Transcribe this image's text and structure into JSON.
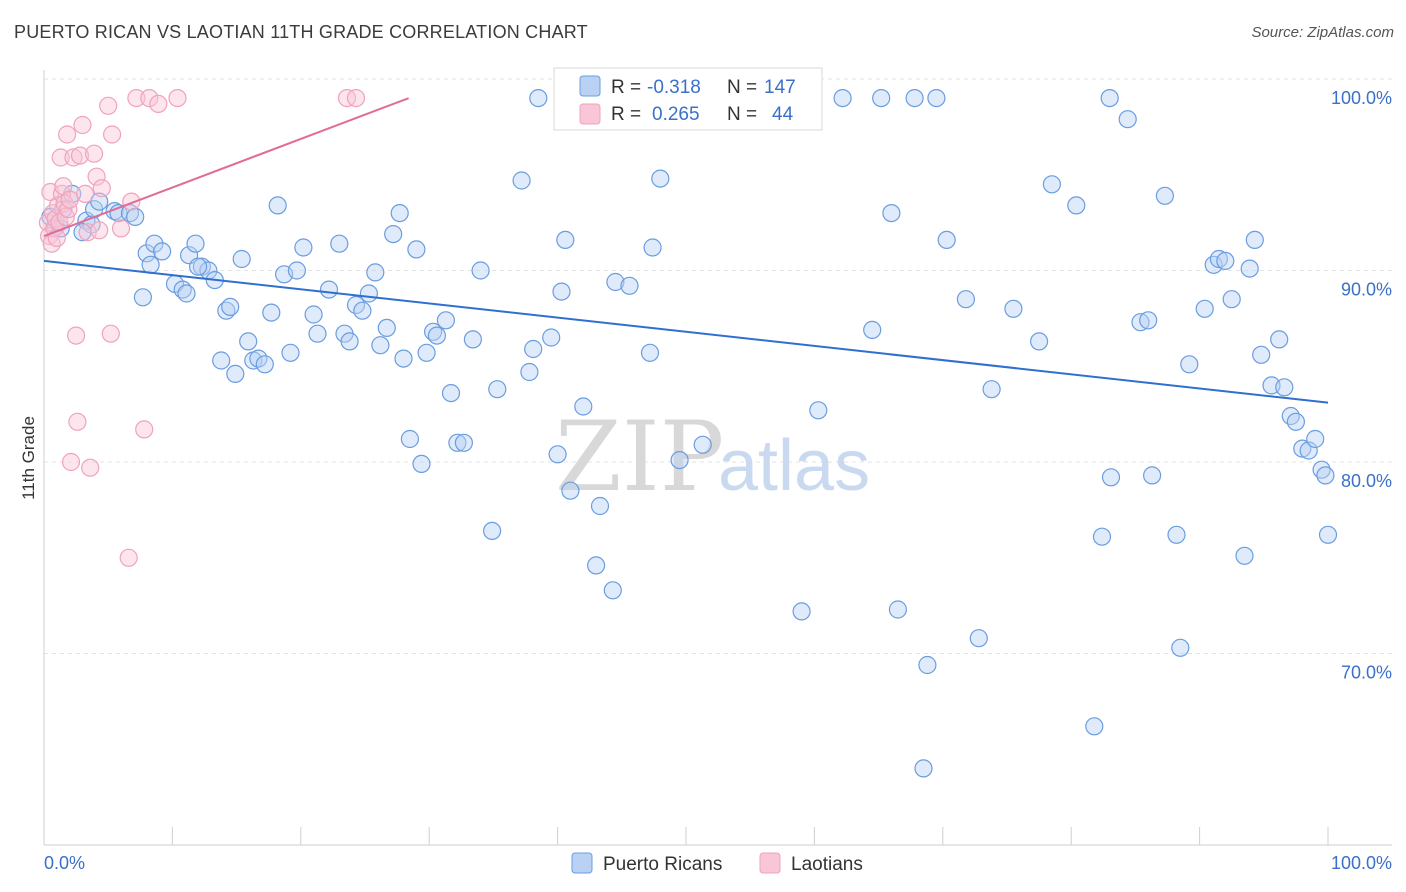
{
  "title": "PUERTO RICAN VS LAOTIAN 11TH GRADE CORRELATION CHART",
  "source": "Source: ZipAtlas.com",
  "watermark": {
    "zip": "ZIP",
    "atlas": "atlas"
  },
  "legend_box": {
    "rows": [
      {
        "r_label": "R =",
        "r_value": "-0.318",
        "n_label": "N =",
        "n_value": "147"
      },
      {
        "r_label": "R =",
        "r_value": "0.265",
        "n_label": "N =",
        "n_value": "44"
      }
    ]
  },
  "chart_data": {
    "type": "scatter",
    "title": "PUERTO RICAN VS LAOTIAN 11TH GRADE CORRELATION CHART",
    "xlabel": "",
    "ylabel": "11th Grade",
    "xlim": [
      0,
      100
    ],
    "ylim": [
      60,
      100
    ],
    "x_tick_labels": [
      "0.0%",
      "100.0%"
    ],
    "y_ticks": [
      {
        "value": 99.0,
        "label": "100.0%"
      },
      {
        "value": 89.0,
        "label": "90.0%"
      },
      {
        "value": 79.0,
        "label": "80.0%"
      },
      {
        "value": 69.0,
        "label": "70.0%"
      }
    ],
    "colors": {
      "puerto_ricans": "#6a9de0",
      "laotians": "#f0a3bc",
      "pr_line": "#2f6fd0",
      "la_line": "#e06c98",
      "axis_text": "#3a70c9"
    },
    "series": [
      {
        "name": "Puerto Ricans",
        "r": -0.318,
        "n": 147,
        "trend": {
          "x0": 0,
          "y0": 90.5,
          "x1": 100,
          "y1": 83.1
        },
        "points": [
          [
            0.5,
            92.8
          ],
          [
            0.9,
            92.3
          ],
          [
            1.3,
            92.2
          ],
          [
            1.5,
            93.2
          ],
          [
            2.2,
            94
          ],
          [
            3.3,
            92.6
          ],
          [
            3.7,
            92.4
          ],
          [
            3.9,
            93.2
          ],
          [
            4.3,
            93.6
          ],
          [
            5.5,
            93.1
          ],
          [
            5.8,
            93
          ],
          [
            6.7,
            93
          ],
          [
            7.1,
            92.8
          ],
          [
            7.7,
            88.6
          ],
          [
            8.0,
            90.9
          ],
          [
            8.3,
            90.3
          ],
          [
            8.6,
            91.4
          ],
          [
            9.2,
            91.0
          ],
          [
            10.2,
            89.3
          ],
          [
            10.8,
            89.0
          ],
          [
            11.1,
            88.8
          ],
          [
            11.3,
            90.8
          ],
          [
            11.8,
            91.4
          ],
          [
            12.3,
            90.2
          ],
          [
            12.8,
            90.0
          ],
          [
            13.3,
            89.5
          ],
          [
            13.8,
            85.3
          ],
          [
            14.2,
            87.9
          ],
          [
            14.5,
            88.1
          ],
          [
            14.9,
            84.6
          ],
          [
            15.4,
            90.6
          ],
          [
            15.9,
            86.3
          ],
          [
            16.3,
            85.3
          ],
          [
            16.7,
            85.4
          ],
          [
            17.2,
            85.1
          ],
          [
            17.7,
            87.8
          ],
          [
            18.2,
            93.4
          ],
          [
            18.7,
            89.8
          ],
          [
            19.2,
            85.7
          ],
          [
            19.7,
            90.0
          ],
          [
            20.2,
            91.2
          ],
          [
            21.0,
            87.7
          ],
          [
            21.3,
            86.7
          ],
          [
            22.2,
            89.0
          ],
          [
            23.0,
            91.4
          ],
          [
            23.4,
            86.7
          ],
          [
            23.8,
            86.3
          ],
          [
            24.3,
            88.2
          ],
          [
            24.8,
            87.9
          ],
          [
            25.3,
            88.8
          ],
          [
            25.8,
            89.9
          ],
          [
            26.2,
            86.1
          ],
          [
            26.7,
            87.0
          ],
          [
            27.2,
            91.9
          ],
          [
            27.7,
            93.0
          ],
          [
            28.0,
            85.4
          ],
          [
            28.5,
            81.2
          ],
          [
            29.0,
            91.1
          ],
          [
            29.4,
            79.9
          ],
          [
            29.8,
            85.7
          ],
          [
            30.3,
            86.8
          ],
          [
            30.6,
            86.6
          ],
          [
            31.3,
            87.4
          ],
          [
            31.7,
            83.6
          ],
          [
            32.2,
            81.0
          ],
          [
            32.7,
            81.0
          ],
          [
            33.4,
            86.4
          ],
          [
            34.0,
            90.0
          ],
          [
            34.9,
            76.4
          ],
          [
            35.3,
            83.8
          ],
          [
            37.2,
            94.7
          ],
          [
            37.8,
            84.7
          ],
          [
            38.1,
            85.9
          ],
          [
            39.5,
            86.5
          ],
          [
            40.0,
            80.4
          ],
          [
            40.3,
            88.9
          ],
          [
            40.6,
            91.6
          ],
          [
            41.0,
            78.5
          ],
          [
            42.0,
            82.9
          ],
          [
            43.0,
            74.6
          ],
          [
            43.3,
            77.7
          ],
          [
            44.3,
            73.3
          ],
          [
            44.5,
            89.4
          ],
          [
            45.6,
            89.2
          ],
          [
            47.2,
            85.7
          ],
          [
            47.4,
            91.2
          ],
          [
            48.0,
            94.8
          ],
          [
            49.5,
            80.1
          ],
          [
            51.3,
            80.9
          ],
          [
            55.0,
            99.0
          ],
          [
            57.0,
            99.0
          ],
          [
            59.0,
            72.2
          ],
          [
            60.3,
            82.7
          ],
          [
            62.2,
            99.0
          ],
          [
            64.5,
            86.9
          ],
          [
            65.2,
            99.0
          ],
          [
            66.5,
            72.3
          ],
          [
            67.8,
            99.0
          ],
          [
            68.5,
            64.0
          ],
          [
            68.8,
            69.4
          ],
          [
            69.5,
            99.0
          ],
          [
            70.3,
            91.6
          ],
          [
            71.8,
            88.5
          ],
          [
            72.8,
            70.8
          ],
          [
            73.8,
            83.8
          ],
          [
            75.5,
            88.0
          ],
          [
            77.5,
            86.3
          ],
          [
            78.5,
            94.5
          ],
          [
            80.4,
            93.4
          ],
          [
            81.8,
            66.2
          ],
          [
            82.4,
            76.1
          ],
          [
            83.1,
            79.2
          ],
          [
            84.4,
            97.9
          ],
          [
            85.4,
            87.3
          ],
          [
            86.0,
            87.4
          ],
          [
            86.3,
            79.3
          ],
          [
            87.3,
            93.9
          ],
          [
            88.2,
            76.2
          ],
          [
            88.5,
            70.3
          ],
          [
            89.2,
            85.1
          ],
          [
            90.4,
            88.0
          ],
          [
            91.1,
            90.3
          ],
          [
            91.5,
            90.6
          ],
          [
            92.0,
            90.5
          ],
          [
            92.5,
            88.5
          ],
          [
            93.5,
            75.1
          ],
          [
            93.9,
            90.1
          ],
          [
            94.3,
            91.6
          ],
          [
            94.8,
            85.6
          ],
          [
            95.6,
            84.0
          ],
          [
            96.2,
            86.4
          ],
          [
            96.6,
            83.9
          ],
          [
            97.1,
            82.4
          ],
          [
            97.5,
            82.1
          ],
          [
            98.0,
            80.7
          ],
          [
            98.5,
            80.6
          ],
          [
            99.0,
            81.2
          ],
          [
            99.5,
            79.6
          ],
          [
            99.8,
            79.3
          ],
          [
            100.0,
            76.2
          ],
          [
            3.0,
            92.0
          ],
          [
            12.0,
            90.2
          ],
          [
            38.5,
            99.0
          ],
          [
            58.5,
            99.0
          ],
          [
            83.0,
            99.0
          ],
          [
            48.5,
            99.0
          ],
          [
            66.0,
            93.0
          ]
        ]
      },
      {
        "name": "Laotians",
        "r": 0.265,
        "n": 44,
        "trend": {
          "x0": 0,
          "y0": 91.8,
          "x1": 28.4,
          "y1": 99.0
        },
        "points": [
          [
            0.3,
            92.5
          ],
          [
            0.4,
            91.8
          ],
          [
            0.5,
            94.1
          ],
          [
            0.6,
            91.4
          ],
          [
            0.7,
            93.0
          ],
          [
            0.8,
            92.2
          ],
          [
            0.9,
            92.7
          ],
          [
            1.0,
            91.7
          ],
          [
            1.1,
            93.4
          ],
          [
            1.2,
            92.5
          ],
          [
            1.3,
            95.9
          ],
          [
            1.4,
            94.0
          ],
          [
            1.5,
            94.4
          ],
          [
            1.6,
            93.5
          ],
          [
            1.7,
            92.8
          ],
          [
            1.8,
            97.1
          ],
          [
            1.9,
            93.2
          ],
          [
            2.0,
            93.7
          ],
          [
            2.1,
            80.0
          ],
          [
            2.3,
            95.9
          ],
          [
            2.5,
            86.6
          ],
          [
            2.6,
            82.1
          ],
          [
            2.8,
            96.0
          ],
          [
            3.0,
            97.6
          ],
          [
            3.2,
            94.0
          ],
          [
            3.4,
            92.0
          ],
          [
            3.6,
            79.7
          ],
          [
            3.9,
            96.1
          ],
          [
            4.1,
            94.9
          ],
          [
            4.3,
            92.1
          ],
          [
            4.5,
            94.3
          ],
          [
            5.0,
            98.6
          ],
          [
            5.2,
            86.7
          ],
          [
            5.3,
            97.1
          ],
          [
            6.0,
            92.2
          ],
          [
            6.6,
            75.0
          ],
          [
            6.8,
            93.6
          ],
          [
            7.2,
            99.0
          ],
          [
            7.8,
            81.7
          ],
          [
            8.2,
            99.0
          ],
          [
            8.9,
            98.7
          ],
          [
            10.4,
            99.0
          ],
          [
            23.6,
            99.0
          ],
          [
            24.3,
            99.0
          ]
        ]
      }
    ]
  },
  "bottom_legend": [
    {
      "label": "Puerto Ricans"
    },
    {
      "label": "Laotians"
    }
  ]
}
